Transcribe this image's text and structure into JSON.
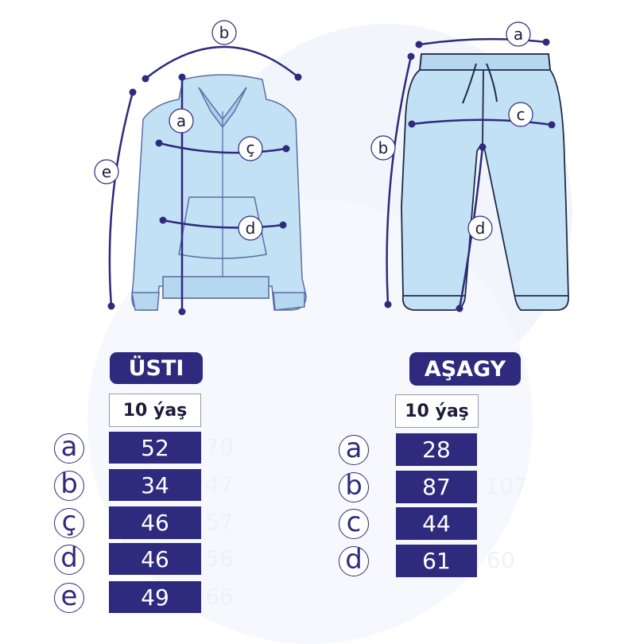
{
  "colors": {
    "navy": "#2e2a7e",
    "garment": "#c3e1f5",
    "outline": "#3b4f86"
  },
  "diagram": {
    "jacket_labels": {
      "a": "a",
      "b": "b",
      "c_cedilla": "ç",
      "d": "d",
      "e": "e"
    },
    "pants_labels": {
      "a": "a",
      "b": "b",
      "c": "c",
      "d": "d"
    }
  },
  "top": {
    "title": "ÜSTI",
    "size": "10 ýaş",
    "rows": [
      {
        "key": "a",
        "value": "52",
        "ghost": "70"
      },
      {
        "key": "b",
        "value": "34",
        "ghost": "47"
      },
      {
        "key": "ç",
        "value": "46",
        "ghost": "57"
      },
      {
        "key": "d",
        "value": "46",
        "ghost": "56"
      },
      {
        "key": "e",
        "value": "49",
        "ghost": "66"
      }
    ]
  },
  "bottom": {
    "title": "AŞAGY",
    "size": "10 ýaş",
    "rows": [
      {
        "key": "a",
        "value": "28",
        "ghost": ""
      },
      {
        "key": "b",
        "value": "87",
        "ghost": "107"
      },
      {
        "key": "c",
        "value": "44",
        "ghost": ""
      },
      {
        "key": "d",
        "value": "61",
        "ghost": "60"
      }
    ]
  }
}
